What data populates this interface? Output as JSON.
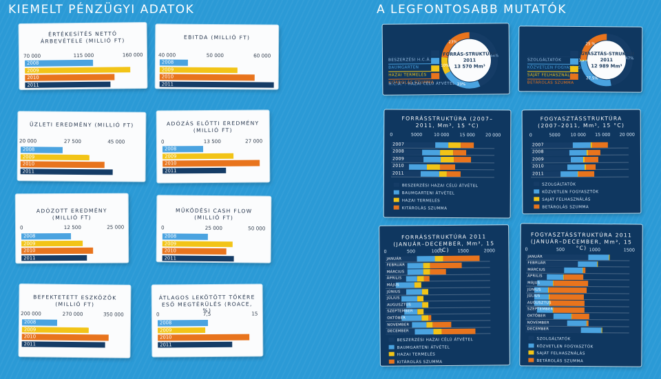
{
  "headers": {
    "left": "KIEMELT PÉNZÜGYI ADATOK",
    "right": "A LEGFONTOSABB MUTATÓK"
  },
  "colors": {
    "c2008": "#4aa3e0",
    "c2009": "#f2c417",
    "c2010": "#e8741d",
    "c2011": "#153c66",
    "bg": "#2b9ad6"
  },
  "chart_data": [
    {
      "id": "arbevetel",
      "type": "bar",
      "title": "ÉRTÉKESÍTÉS NETTÓ ÁRBEVÉTELE (MILLIÓ FT)",
      "categories": [
        "2008",
        "2009",
        "2010",
        "2011"
      ],
      "values": [
        122000,
        150000,
        138000,
        135000
      ],
      "ticks": [
        "70 000",
        "115 000",
        "160 000"
      ],
      "xlim": [
        70000,
        160000
      ]
    },
    {
      "id": "ebitda",
      "type": "bar",
      "title": "EBITDA (MILLIÓ FT)",
      "categories": [
        "2008",
        "2009",
        "2010",
        "2011"
      ],
      "values": [
        45000,
        54000,
        57000,
        60500
      ],
      "ticks": [
        "40 000",
        "50 000",
        "60 000"
      ],
      "xlim": [
        40000,
        60000
      ]
    },
    {
      "id": "uzleti",
      "type": "bar",
      "title": "ÜZLETI EREDMÉNY (MILLIÓ FT)",
      "categories": [
        "2008",
        "2009",
        "2010",
        "2011"
      ],
      "values": [
        30000,
        36500,
        40000,
        42000
      ],
      "ticks": [
        "20 000",
        "27 500",
        "45 000"
      ],
      "xlim": [
        20000,
        45000
      ]
    },
    {
      "id": "adozas",
      "type": "bar",
      "title": "ADÓZÁS ELŐTTI EREDMÉNY (MILLIÓ FT)",
      "categories": [
        "2008",
        "2009",
        "2010",
        "2011"
      ],
      "values": [
        11000,
        19000,
        26000,
        17000
      ],
      "ticks": [
        "0",
        "13 500",
        "27 000"
      ],
      "xlim": [
        0,
        27000
      ]
    },
    {
      "id": "adozott",
      "type": "bar",
      "title": "ADÓZOTT EREDMÉNY (MILLIÓ FT)",
      "categories": [
        "2008",
        "2009",
        "2010",
        "2011"
      ],
      "values": [
        12000,
        14800,
        17300,
        15800
      ],
      "ticks": [
        "0",
        "12 500",
        "25 000"
      ],
      "xlim": [
        0,
        25000
      ]
    },
    {
      "id": "cashflow",
      "type": "bar",
      "title": "MŰKÖDÉSI CASH FLOW (MILLIÓ FT)",
      "categories": [
        "2008",
        "2009",
        "2010",
        "2011"
      ],
      "values": [
        22000,
        34000,
        31000,
        34500
      ],
      "ticks": [
        "0",
        "25 000",
        "50 000"
      ],
      "xlim": [
        0,
        50000
      ]
    },
    {
      "id": "beruhazas",
      "type": "bar",
      "title": "BEFEKTETETT ESZKÖZÖK (MILLIÓ FT)",
      "categories": [
        "2008",
        "2009",
        "2010",
        "2011"
      ],
      "values": [
        252000,
        298000,
        328000,
        323000
      ],
      "ticks": [
        "200 000",
        "270 000",
        "350 000"
      ],
      "xlim": [
        200000,
        350000
      ]
    },
    {
      "id": "roace",
      "type": "bar",
      "title": "ÁTLAGOS LEKÖTÖTT TŐKÉRE ESŐ MEGTÉRÜLÉS (ROACE, %)",
      "categories": [
        "2008",
        "2009",
        "2010",
        "2011"
      ],
      "values": [
        7.6,
        7.1,
        13.8,
        11.2
      ],
      "ticks": [
        "0",
        "7,5",
        "15"
      ],
      "xlim": [
        0,
        15
      ]
    },
    {
      "id": "forras_donut",
      "type": "pie",
      "title": "FORRÁS-STRUKTÚRA",
      "year": "2011",
      "total": "13 570 Mm³",
      "legend": [
        "BESZERZÉSI H.C.Á.*",
        "BAUMGARTEN",
        "HAZAI TERMELÉS",
        "KITÁROLÁS SZUMMA"
      ],
      "values": [
        44,
        23,
        10,
        23
      ],
      "labels": [
        "44%",
        "23%",
        "10%",
        "23%"
      ],
      "colors": [
        "#153c66",
        "#4aa3e0",
        "#f2c417",
        "#e8741d"
      ],
      "footnote": "H.C.Á.*: HAZAI CÉLÚ ÁTVÉTEL"
    },
    {
      "id": "fogyasztas_donut",
      "type": "pie",
      "title": "FOGYASZTÁS-STRUKTÚRA",
      "year": "2011",
      "total": "12 989 Mm³",
      "legend": [
        "SZOLGÁLTATÓK",
        "KÖZVETLEN FOGYASZTÓK",
        "SAJÁT FELHASZNÁLÁS",
        "BETÁROLÁS SZUMMA"
      ],
      "values": [
        47,
        27.5,
        0.5,
        25
      ],
      "labels": [
        "47%",
        "27,5%",
        "0,5 %",
        "25 %"
      ],
      "colors": [
        "#153c66",
        "#4aa3e0",
        "#f2c417",
        "#e8741d"
      ]
    },
    {
      "id": "forras_struct",
      "type": "bar",
      "title": "FORRÁSSTRUKTÚRA (2007–2011, Mm³, 15 °C)",
      "categories": [
        "2007",
        "2008",
        "2009",
        "2010",
        "2011"
      ],
      "ticks": [
        "0",
        "5000",
        "10 000",
        "15 000",
        "20 000"
      ],
      "xlim": [
        0,
        20000
      ],
      "series": [
        {
          "name": "BESZERZÉSI HAZAI CÉLÚ ÁTVÉTEL",
          "values": [
            8500,
            6000,
            6200,
            3500,
            5700
          ]
        },
        {
          "name": "BAUMGARTENI ÁTVÉTEL",
          "values": [
            2500,
            3500,
            3400,
            3400,
            3600
          ]
        },
        {
          "name": "HAZAI TERMELÉS",
          "values": [
            2500,
            2500,
            2500,
            2500,
            1500
          ]
        },
        {
          "name": "KITÁROLÁS SZUMMA",
          "values": [
            2500,
            2500,
            3400,
            3000,
            2700
          ]
        }
      ]
    },
    {
      "id": "fogy_struct",
      "type": "bar",
      "title": "FOGYASZTÁSSTRUKTÚRA (2007–2011, Mm³, 15 °C)",
      "categories": [
        "2007",
        "2008",
        "2009",
        "2010",
        "2011"
      ],
      "ticks": [
        "0",
        "5000",
        "10 000",
        "15 000",
        "20 000"
      ],
      "xlim": [
        0,
        20000
      ],
      "series": [
        {
          "name": "SZOLGÁLTATÓK",
          "values": [
            8600,
            7900,
            8100,
            7500,
            6100
          ]
        },
        {
          "name": "KÖZVETLEN FOGYASZTÓK",
          "values": [
            3600,
            3500,
            2600,
            3500,
            3500
          ]
        },
        {
          "name": "SAJÁT FELHASZNÁLÁS",
          "values": [
            300,
            300,
            300,
            300,
            100
          ]
        },
        {
          "name": "BETÁROLÁS SZUMMA",
          "values": [
            3300,
            2500,
            2800,
            2000,
            3200
          ]
        }
      ]
    },
    {
      "id": "forras_monthly",
      "type": "bar",
      "title": "FORRÁSSTRUKTÚRA 2011 (JANUÁR–DECEMBER, Mm³, 15 °C)",
      "categories": [
        "JANUÁR",
        "FEBRUÁR",
        "MÁRCIUS",
        "ÁPRILIS",
        "MÁJUS",
        "JÚNIUS",
        "JÚLIUS",
        "AUGUSZTUS",
        "SZEPTEMBER",
        "OKTÓBER",
        "NOVEMBER",
        "DECEMBER"
      ],
      "ticks": [
        "0",
        "500",
        "1000",
        "1500",
        "2000"
      ],
      "xlim": [
        0,
        2000
      ],
      "series": [
        {
          "name": "BESZERZÉSI HAZAI CÉLÚ ÁTVÉTEL",
          "values": [
            600,
            420,
            420,
            400,
            200,
            400,
            300,
            400,
            350,
            300,
            500,
            550
          ]
        },
        {
          "name": "BAUMGARTENI ÁTVÉTEL",
          "values": [
            350,
            300,
            300,
            200,
            350,
            300,
            300,
            300,
            250,
            380,
            280,
            360
          ]
        },
        {
          "name": "HAZAI TERMELÉS",
          "values": [
            150,
            140,
            140,
            140,
            140,
            120,
            130,
            120,
            120,
            140,
            120,
            150
          ]
        },
        {
          "name": "KITÁROLÁS SZUMMA",
          "values": [
            700,
            600,
            300,
            100,
            0,
            0,
            0,
            0,
            0,
            50,
            350,
            650
          ]
        }
      ]
    },
    {
      "id": "fogy_monthly",
      "type": "bar",
      "title": "FOGYASZTÁSSTRUKTÚRA 2011 (JANUÁR–DECEMBER, Mm³, 15 °C)",
      "categories": [
        "JANUÁR",
        "FEBRUÁR",
        "MÁRCIUS",
        "ÁPRILIS",
        "MÁJUS",
        "JÚNIUS",
        "JÚLIUS",
        "AUGUSZTUS",
        "SZEPTEMBER",
        "OKTÓBER",
        "NOVEMBER",
        "DECEMBER"
      ],
      "ticks": [
        "0",
        "500",
        "1000",
        "1500"
      ],
      "xlim": [
        0,
        1500
      ],
      "series": [
        {
          "name": "SZOLGÁLTATÓK",
          "values": [
            900,
            750,
            550,
            300,
            160,
            120,
            120,
            120,
            160,
            400,
            600,
            800
          ]
        },
        {
          "name": "KÖZVETLEN FOGYASZTÓK",
          "values": [
            300,
            280,
            270,
            240,
            230,
            200,
            210,
            220,
            230,
            260,
            280,
            300
          ]
        },
        {
          "name": "SAJÁT FELHASZNÁLÁS",
          "values": [
            10,
            10,
            10,
            10,
            10,
            10,
            10,
            10,
            10,
            10,
            10,
            10
          ]
        },
        {
          "name": "BETÁROLÁS SZUMMA",
          "values": [
            0,
            0,
            30,
            280,
            500,
            550,
            500,
            500,
            450,
            250,
            20,
            0
          ]
        }
      ]
    }
  ]
}
